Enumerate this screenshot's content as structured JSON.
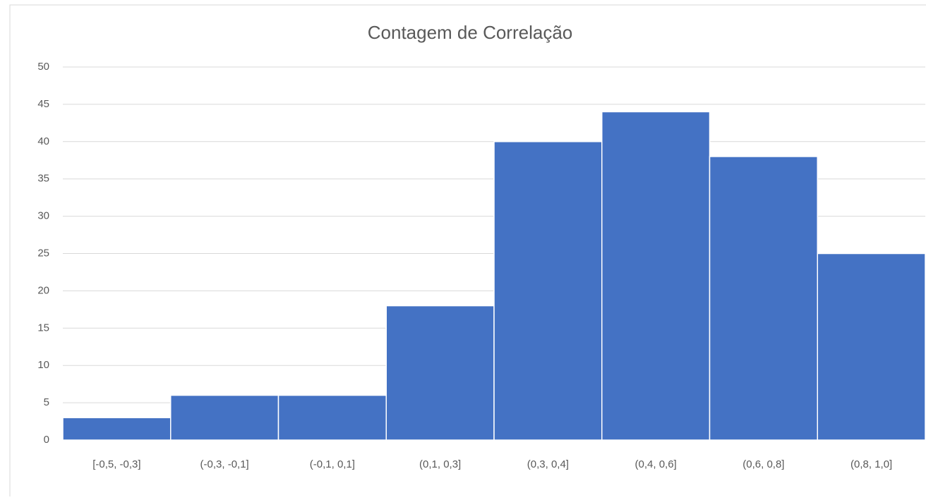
{
  "chart_data": {
    "type": "bar",
    "title": "Contagem de Correlação",
    "categories": [
      "[-0,5, -0,3]",
      "(-0,3, -0,1]",
      "(-0,1, 0,1]",
      "(0,1, 0,3]",
      "(0,3, 0,4]",
      "(0,4, 0,6]",
      "(0,6, 0,8]",
      "(0,8, 1,0]"
    ],
    "values": [
      3,
      6,
      6,
      18,
      40,
      44,
      38,
      25
    ],
    "color": "#4472c4",
    "ylim": [
      0,
      50
    ],
    "yticks": [
      0,
      5,
      10,
      15,
      20,
      25,
      30,
      35,
      40,
      45,
      50
    ],
    "grid": true
  }
}
